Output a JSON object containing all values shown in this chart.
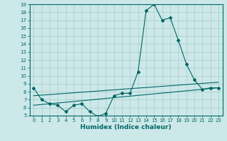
{
  "xlabel": "Humidex (Indice chaleur)",
  "bg_color": "#cce8e8",
  "line_color": "#006666",
  "grid_color": "#aacccc",
  "xlim": [
    -0.5,
    23.5
  ],
  "ylim": [
    5,
    19
  ],
  "xticks": [
    0,
    1,
    2,
    3,
    4,
    5,
    6,
    7,
    8,
    9,
    10,
    11,
    12,
    13,
    14,
    15,
    16,
    17,
    18,
    19,
    20,
    21,
    22,
    23
  ],
  "yticks": [
    5,
    6,
    7,
    8,
    9,
    10,
    11,
    12,
    13,
    14,
    15,
    16,
    17,
    18,
    19
  ],
  "curve1_x": [
    0,
    1,
    2,
    3,
    4,
    5,
    6,
    7,
    8,
    9,
    10,
    11,
    12,
    13,
    14,
    15,
    16,
    17,
    18,
    19,
    20,
    21,
    22,
    23
  ],
  "curve1_y": [
    8.5,
    7.0,
    6.5,
    6.3,
    5.5,
    6.3,
    6.5,
    5.5,
    4.9,
    5.3,
    7.5,
    7.8,
    7.8,
    10.5,
    18.2,
    19.0,
    17.0,
    17.3,
    14.5,
    11.5,
    9.5,
    8.3,
    8.5,
    8.5
  ],
  "curve2_x": [
    0,
    23
  ],
  "curve2_y": [
    7.5,
    9.2
  ],
  "curve3_x": [
    0,
    23
  ],
  "curve3_y": [
    6.3,
    8.5
  ]
}
